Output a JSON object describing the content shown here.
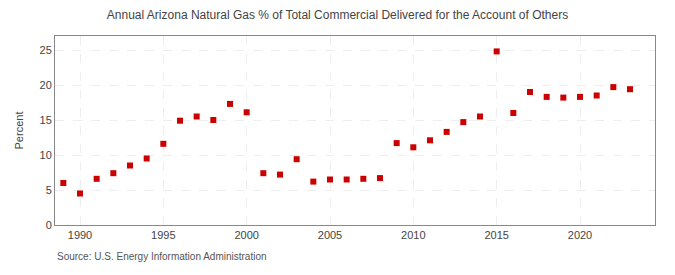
{
  "chart_data": {
    "type": "scatter",
    "title": "Annual Arizona Natural Gas % of Total Commercial Delivered for the Account of Others",
    "ylabel": "Percent",
    "annotations": [
      "Source: U.S. Energy Information Administration"
    ],
    "x": [
      1989,
      1990,
      1991,
      1992,
      1993,
      1994,
      1995,
      1996,
      1997,
      1998,
      1999,
      2000,
      2001,
      2002,
      2003,
      2004,
      2005,
      2006,
      2007,
      2008,
      2009,
      2010,
      2011,
      2012,
      2013,
      2014,
      2015,
      2016,
      2017,
      2018,
      2019,
      2020,
      2021,
      2022,
      2023
    ],
    "values": [
      6.0,
      4.5,
      6.6,
      7.4,
      8.5,
      9.5,
      11.6,
      14.9,
      15.5,
      15.0,
      17.3,
      16.1,
      7.4,
      7.2,
      9.4,
      6.2,
      6.5,
      6.5,
      6.6,
      6.7,
      11.7,
      11.1,
      12.1,
      13.3,
      14.7,
      15.5,
      24.8,
      16.0,
      19.0,
      18.3,
      18.2,
      18.3,
      18.5,
      19.7,
      19.4
    ],
    "color": "#cc0000",
    "marker": "square",
    "xlim": [
      1988.5,
      2024.5
    ],
    "xticks": [
      1990,
      1995,
      2000,
      2005,
      2010,
      2015,
      2020
    ],
    "ylim": [
      0,
      27
    ],
    "yticks": [
      0,
      5,
      10,
      15,
      20,
      25
    ],
    "grid": true
  }
}
